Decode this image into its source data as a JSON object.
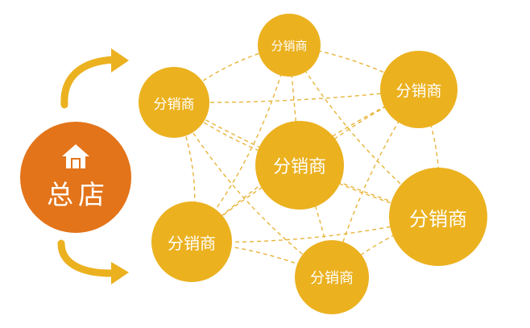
{
  "headquarters": {
    "label": "总店",
    "icon": "house-icon",
    "color": "#e3741a"
  },
  "distributors": [
    {
      "label": "分销商"
    },
    {
      "label": "分销商"
    },
    {
      "label": "分销商"
    },
    {
      "label": "分销商"
    },
    {
      "label": "分销商"
    },
    {
      "label": "分销商"
    },
    {
      "label": "分销商"
    }
  ],
  "colors": {
    "distributor": "#ebb11f",
    "arrow": "#ebb11f",
    "link": "#e8b43a"
  }
}
